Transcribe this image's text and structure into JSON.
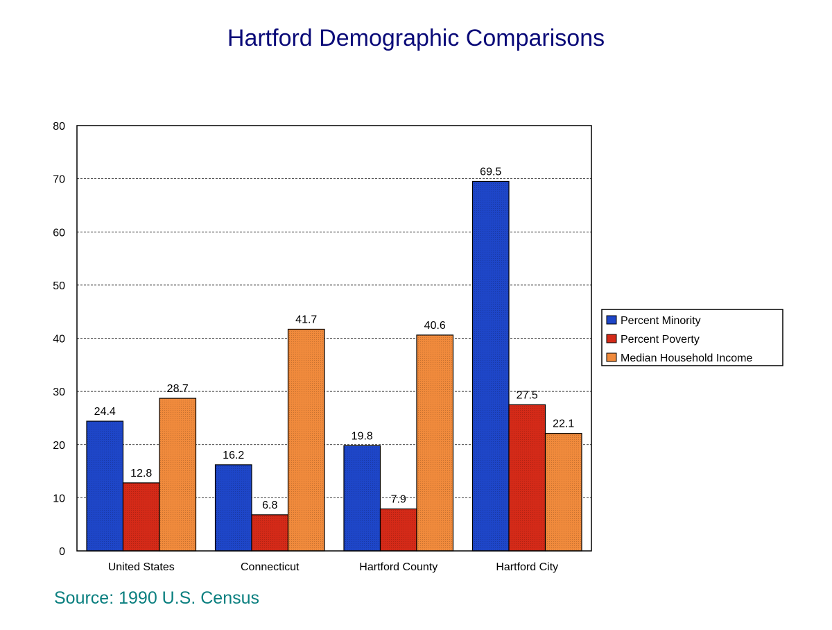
{
  "chart_data": {
    "type": "bar",
    "title": "Hartford Demographic Comparisons",
    "source": "Source: 1990 U.S. Census",
    "categories": [
      "United States",
      "Connecticut",
      "Hartford County",
      "Hartford City"
    ],
    "series": [
      {
        "name": "Percent Minority",
        "color": "#1e46c8",
        "values": [
          24.4,
          16.2,
          19.8,
          69.5
        ]
      },
      {
        "name": "Percent Poverty",
        "color": "#d42a18",
        "values": [
          12.8,
          6.8,
          7.9,
          27.5
        ]
      },
      {
        "name": "Median Household Income",
        "color": "#f08a3c",
        "values": [
          28.7,
          41.7,
          40.6,
          22.1
        ]
      }
    ],
    "ylim": [
      0,
      80
    ],
    "yticks": [
      0,
      10,
      20,
      30,
      40,
      50,
      60,
      70,
      80
    ],
    "xlabel": "",
    "ylabel": "",
    "grid": "horizontal-dashed",
    "legend": "right"
  }
}
